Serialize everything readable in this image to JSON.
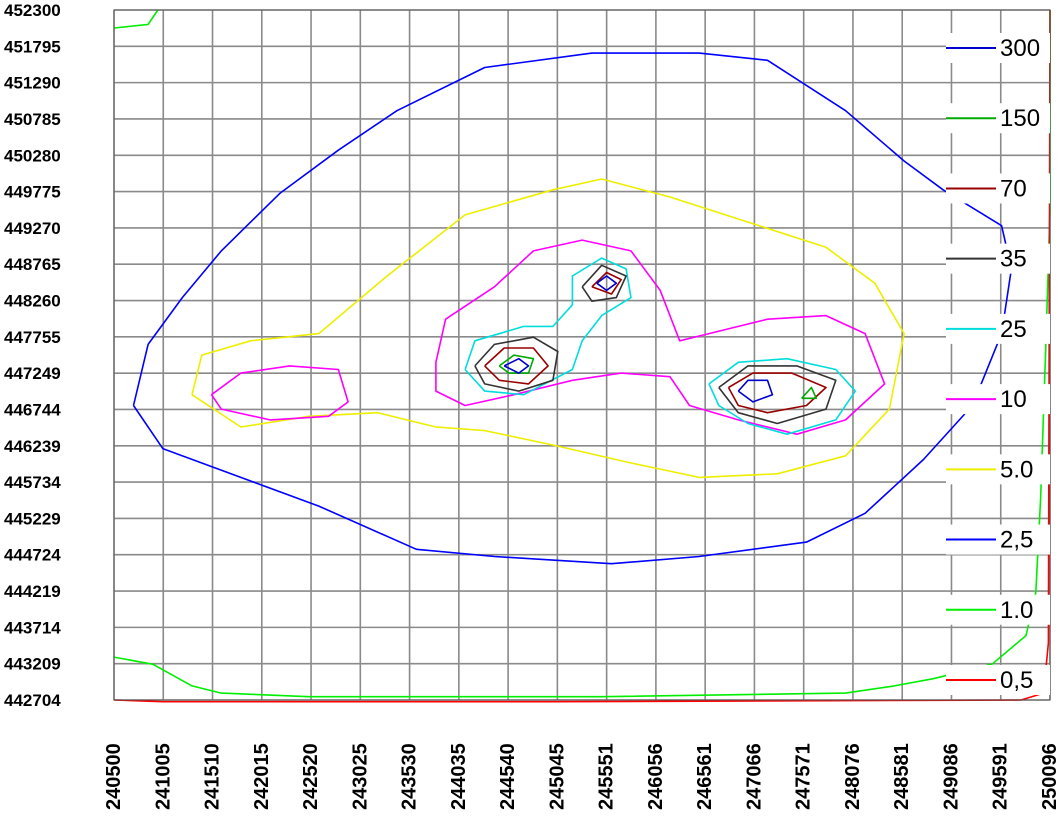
{
  "chart_data": {
    "type": "contour",
    "title": "",
    "xlabel": "",
    "ylabel": "",
    "grid": true,
    "legend_position": "right",
    "x_ticks": [
      "240500",
      "241005",
      "241510",
      "242015",
      "242520",
      "243025",
      "243530",
      "244035",
      "244540",
      "245045",
      "245551",
      "246056",
      "246561",
      "247066",
      "247571",
      "248076",
      "248581",
      "249086",
      "249591",
      "250096"
    ],
    "y_ticks": [
      "452300",
      "451795",
      "451290",
      "450785",
      "450280",
      "449775",
      "449270",
      "448765",
      "448260",
      "447755",
      "447249",
      "446744",
      "446239",
      "445734",
      "445229",
      "444724",
      "444219",
      "443714",
      "443209",
      "442704"
    ],
    "xlim": [
      240500,
      250096
    ],
    "ylim": [
      442704,
      452300
    ],
    "legend": [
      {
        "label": "300",
        "color": "#0000cc"
      },
      {
        "label": "150",
        "color": "#00aa00"
      },
      {
        "label": "70",
        "color": "#990000"
      },
      {
        "label": "35",
        "color": "#333333"
      },
      {
        "label": "25",
        "color": "#00dddd"
      },
      {
        "label": "10",
        "color": "#ff00ff"
      },
      {
        "label": "5.0",
        "color": "#eeee00"
      },
      {
        "label": "2,5",
        "color": "#0000ff"
      },
      {
        "label": "1.0",
        "color": "#00ee00"
      },
      {
        "label": "0,5",
        "color": "#ff0000"
      }
    ],
    "contours": [
      {
        "level": "2,5",
        "color": "#0000ff",
        "points": [
          [
            240700,
            446800
          ],
          [
            240850,
            447650
          ],
          [
            241200,
            448300
          ],
          [
            241600,
            448950
          ],
          [
            242200,
            449750
          ],
          [
            242800,
            450350
          ],
          [
            243400,
            450900
          ],
          [
            244300,
            451500
          ],
          [
            245400,
            451700
          ],
          [
            246500,
            451700
          ],
          [
            247200,
            451600
          ],
          [
            248000,
            450900
          ],
          [
            248600,
            450200
          ],
          [
            249000,
            449800
          ],
          [
            249600,
            449300
          ],
          [
            249700,
            448700
          ],
          [
            249600,
            447800
          ],
          [
            249300,
            446800
          ],
          [
            248800,
            446050
          ],
          [
            248200,
            445300
          ],
          [
            247600,
            444900
          ],
          [
            246500,
            444700
          ],
          [
            245600,
            444600
          ],
          [
            244400,
            444700
          ],
          [
            243600,
            444800
          ],
          [
            242600,
            445400
          ],
          [
            241800,
            445800
          ],
          [
            241000,
            446200
          ],
          [
            240700,
            446800
          ]
        ]
      },
      {
        "level": "5.0",
        "color": "#eeee00",
        "points": [
          [
            241300,
            446950
          ],
          [
            241400,
            447500
          ],
          [
            241900,
            447700
          ],
          [
            242600,
            447800
          ],
          [
            243300,
            448600
          ],
          [
            244100,
            449450
          ],
          [
            245000,
            449800
          ],
          [
            245500,
            449950
          ],
          [
            246200,
            449700
          ],
          [
            247000,
            449350
          ],
          [
            247800,
            449000
          ],
          [
            248300,
            448500
          ],
          [
            248600,
            447800
          ],
          [
            248450,
            446750
          ],
          [
            248000,
            446100
          ],
          [
            247300,
            445850
          ],
          [
            246500,
            445800
          ],
          [
            245800,
            446000
          ],
          [
            245000,
            446250
          ],
          [
            244300,
            446450
          ],
          [
            243800,
            446500
          ],
          [
            243200,
            446700
          ],
          [
            242500,
            446650
          ],
          [
            241800,
            446500
          ],
          [
            241300,
            446950
          ]
        ]
      },
      {
        "level": "10",
        "color": "#ff00ff",
        "points": [
          [
            241500,
            446950
          ],
          [
            241800,
            447250
          ],
          [
            242300,
            447350
          ],
          [
            242800,
            447300
          ],
          [
            242900,
            446850
          ],
          [
            242700,
            446650
          ],
          [
            242100,
            446600
          ],
          [
            241600,
            446750
          ],
          [
            241500,
            446950
          ]
        ]
      },
      {
        "level": "10",
        "color": "#ff00ff",
        "points": [
          [
            243800,
            447400
          ],
          [
            243900,
            448000
          ],
          [
            244400,
            448450
          ],
          [
            244800,
            448950
          ],
          [
            245300,
            449100
          ],
          [
            245800,
            448950
          ],
          [
            246100,
            448400
          ],
          [
            246300,
            447700
          ],
          [
            246600,
            447800
          ],
          [
            247200,
            448000
          ],
          [
            247800,
            448050
          ],
          [
            248200,
            447800
          ],
          [
            248400,
            447100
          ],
          [
            248000,
            446600
          ],
          [
            247500,
            446400
          ],
          [
            246900,
            446600
          ],
          [
            246400,
            446800
          ],
          [
            246200,
            447200
          ],
          [
            245700,
            447250
          ],
          [
            245200,
            447150
          ],
          [
            244600,
            446950
          ],
          [
            244100,
            446800
          ],
          [
            243800,
            447000
          ],
          [
            243800,
            447400
          ]
        ]
      },
      {
        "level": "25",
        "color": "#00dddd",
        "points": [
          [
            244100,
            447300
          ],
          [
            244200,
            447700
          ],
          [
            244700,
            447900
          ],
          [
            245000,
            447900
          ],
          [
            245200,
            448200
          ],
          [
            245200,
            448600
          ],
          [
            245500,
            448850
          ],
          [
            245750,
            448700
          ],
          [
            245800,
            448300
          ],
          [
            245500,
            448050
          ],
          [
            245300,
            447700
          ],
          [
            245200,
            447300
          ],
          [
            244700,
            446950
          ],
          [
            244300,
            447000
          ],
          [
            244100,
            447300
          ]
        ]
      },
      {
        "level": "25",
        "color": "#00dddd",
        "points": [
          [
            246600,
            447100
          ],
          [
            246900,
            447400
          ],
          [
            247400,
            447450
          ],
          [
            247900,
            447300
          ],
          [
            248100,
            447000
          ],
          [
            247900,
            446600
          ],
          [
            247400,
            446400
          ],
          [
            247000,
            446550
          ],
          [
            246700,
            446800
          ],
          [
            246600,
            447100
          ]
        ]
      },
      {
        "level": "35",
        "color": "#333333",
        "points": [
          [
            244200,
            447350
          ],
          [
            244400,
            447650
          ],
          [
            244800,
            447750
          ],
          [
            245050,
            447550
          ],
          [
            245000,
            447150
          ],
          [
            244650,
            447000
          ],
          [
            244300,
            447100
          ],
          [
            244200,
            447350
          ]
        ]
      },
      {
        "level": "35",
        "color": "#333333",
        "points": [
          [
            245300,
            448450
          ],
          [
            245500,
            448750
          ],
          [
            245750,
            448600
          ],
          [
            245650,
            448300
          ],
          [
            245400,
            448250
          ],
          [
            245300,
            448450
          ]
        ]
      },
      {
        "level": "35",
        "color": "#333333",
        "points": [
          [
            246700,
            447050
          ],
          [
            247000,
            447350
          ],
          [
            247500,
            447350
          ],
          [
            247900,
            447150
          ],
          [
            247800,
            446750
          ],
          [
            247300,
            446550
          ],
          [
            246900,
            446700
          ],
          [
            246700,
            447050
          ]
        ]
      },
      {
        "level": "70",
        "color": "#990000",
        "points": [
          [
            244300,
            447350
          ],
          [
            244500,
            447600
          ],
          [
            244800,
            447600
          ],
          [
            244950,
            447350
          ],
          [
            244750,
            447100
          ],
          [
            244450,
            447150
          ],
          [
            244300,
            447350
          ]
        ]
      },
      {
        "level": "70",
        "color": "#990000",
        "points": [
          [
            245400,
            448450
          ],
          [
            245550,
            448650
          ],
          [
            245700,
            448550
          ],
          [
            245600,
            448350
          ],
          [
            245400,
            448450
          ]
        ]
      },
      {
        "level": "70",
        "color": "#990000",
        "points": [
          [
            246800,
            447050
          ],
          [
            247050,
            447250
          ],
          [
            247450,
            447250
          ],
          [
            247800,
            447050
          ],
          [
            247600,
            446800
          ],
          [
            247200,
            446700
          ],
          [
            246900,
            446800
          ],
          [
            246800,
            447050
          ]
        ]
      },
      {
        "level": "150",
        "color": "#00aa00",
        "points": [
          [
            244450,
            447350
          ],
          [
            244600,
            447500
          ],
          [
            244800,
            447450
          ],
          [
            244750,
            447250
          ],
          [
            244550,
            447250
          ],
          [
            244450,
            447350
          ]
        ]
      },
      {
        "level": "150",
        "color": "#00aa00",
        "points": [
          [
            247550,
            446900
          ],
          [
            247650,
            447050
          ],
          [
            247700,
            446900
          ],
          [
            247550,
            446900
          ]
        ]
      },
      {
        "level": "300",
        "color": "#0000cc",
        "points": [
          [
            244500,
            447350
          ],
          [
            244650,
            447450
          ],
          [
            244750,
            447350
          ],
          [
            244650,
            447250
          ],
          [
            244500,
            447350
          ]
        ]
      },
      {
        "level": "300",
        "color": "#0000cc",
        "points": [
          [
            245450,
            448500
          ],
          [
            245550,
            448600
          ],
          [
            245650,
            448500
          ],
          [
            245550,
            448400
          ],
          [
            245450,
            448500
          ]
        ]
      },
      {
        "level": "300",
        "color": "#0000cc",
        "points": [
          [
            246900,
            447000
          ],
          [
            247000,
            447150
          ],
          [
            247200,
            447150
          ],
          [
            247250,
            446950
          ],
          [
            247050,
            446850
          ],
          [
            246900,
            447000
          ]
        ]
      },
      {
        "level": "1.0",
        "color": "#00ee00",
        "points": [
          [
            240500,
            443300
          ],
          [
            240900,
            443200
          ],
          [
            241300,
            442900
          ],
          [
            241600,
            442800
          ],
          [
            242500,
            442750
          ],
          [
            245500,
            442750
          ],
          [
            248000,
            442800
          ],
          [
            248500,
            442900
          ],
          [
            248900,
            443000
          ],
          [
            249500,
            443200
          ],
          [
            249850,
            443600
          ],
          [
            249950,
            444200
          ],
          [
            250000,
            445500
          ],
          [
            250050,
            447500
          ],
          [
            250096,
            449500
          ],
          [
            250096,
            452300
          ]
        ]
      },
      {
        "level": "1.0",
        "color": "#00ee00",
        "points": [
          [
            240500,
            452050
          ],
          [
            240850,
            452100
          ],
          [
            240950,
            452300
          ]
        ]
      },
      {
        "level": "0,5",
        "color": "#ff0000",
        "points": [
          [
            240500,
            442704
          ],
          [
            241000,
            442680
          ],
          [
            245000,
            442680
          ],
          [
            249800,
            442704
          ],
          [
            250030,
            442800
          ],
          [
            250080,
            443500
          ],
          [
            250096,
            452300
          ]
        ]
      }
    ]
  }
}
